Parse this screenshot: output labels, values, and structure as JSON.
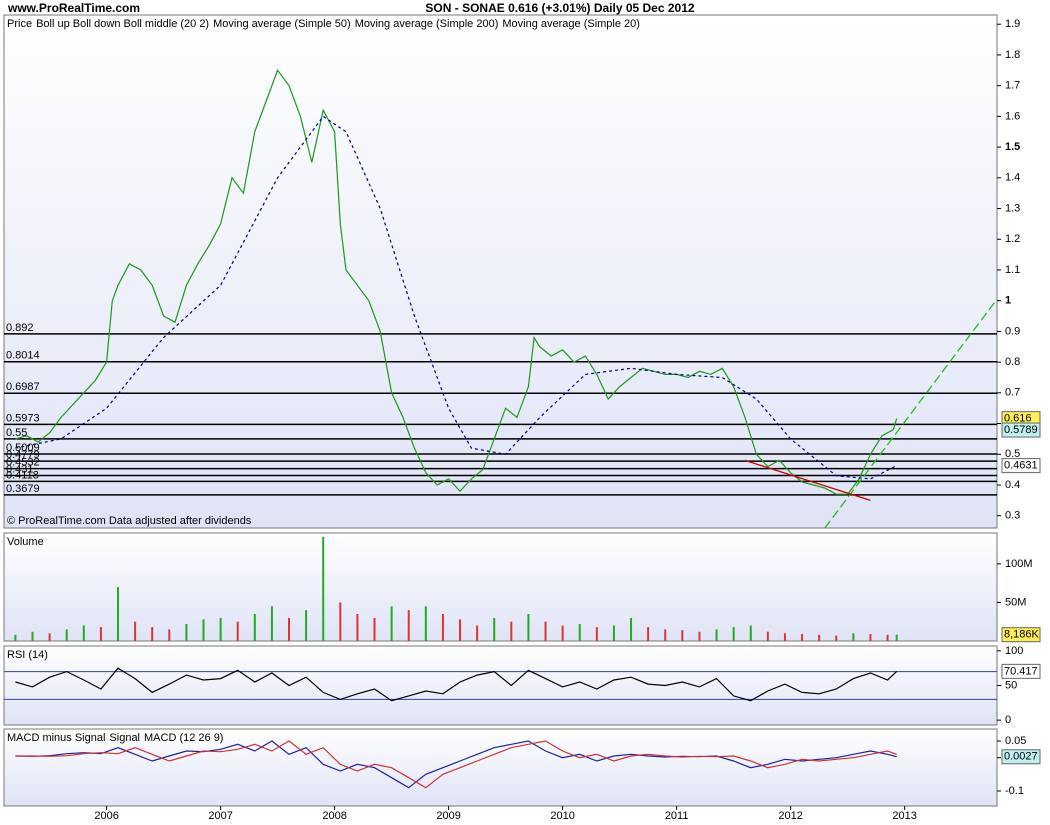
{
  "site": "www.ProRealTime.com",
  "header": "SON - SONAE   0.616 (+3.01%)    Daily  05 Dec 2012",
  "chart_data": [
    {
      "type": "line",
      "panel": "price",
      "legend": [
        {
          "name": "Price",
          "color": "#000000"
        },
        {
          "name": "Boll up Boll down Boll middle (20 2)",
          "color": "#b070c8"
        },
        {
          "name": "Moving average (Simple 50)",
          "color": "#cc0000"
        },
        {
          "name": "Moving average (Simple 200)",
          "color": "#000080"
        },
        {
          "name": "Moving average (Simple 20)",
          "color": "#22d8d8"
        }
      ],
      "footnote": "© ProRealTime.com  Data adjusted after dividends",
      "xlim": [
        2005.1,
        2013.81
      ],
      "ylim": [
        0.26,
        1.93
      ],
      "yticks": [
        0.3,
        0.4,
        0.5,
        0.6,
        0.7,
        0.8,
        0.9,
        1,
        1.1,
        1.2,
        1.3,
        1.4,
        1.5,
        1.6,
        1.7,
        1.8,
        1.9
      ],
      "levels": [
        0.892,
        0.8014,
        0.6987,
        0.5973,
        0.55,
        0.5009,
        0.4779,
        0.4532,
        0.431,
        0.4118,
        0.3679
      ],
      "series": [
        {
          "color": "#1a9a1a",
          "style": "solid",
          "x": [
            2005.2,
            2005.3,
            2005.4,
            2005.5,
            2005.6,
            2005.7,
            2005.8,
            2005.9,
            2006.0,
            2006.05,
            2006.1,
            2006.2,
            2006.3,
            2006.4,
            2006.5,
            2006.6,
            2006.7,
            2006.8,
            2006.9,
            2007.0,
            2007.1,
            2007.2,
            2007.3,
            2007.4,
            2007.5,
            2007.6,
            2007.7,
            2007.8,
            2007.9,
            2008.0,
            2008.05,
            2008.1,
            2008.2,
            2008.3,
            2008.4,
            2008.5,
            2008.6,
            2008.7,
            2008.8,
            2008.9,
            2009.0,
            2009.1,
            2009.2,
            2009.3,
            2009.4,
            2009.5,
            2009.6,
            2009.7,
            2009.75,
            2009.8,
            2009.9,
            2010.0,
            2010.1,
            2010.2,
            2010.3,
            2010.4,
            2010.5,
            2010.6,
            2010.7,
            2010.8,
            2010.9,
            2011.0,
            2011.1,
            2011.2,
            2011.3,
            2011.4,
            2011.5,
            2011.6,
            2011.7,
            2011.8,
            2011.9,
            2012.0,
            2012.1,
            2012.2,
            2012.3,
            2012.4,
            2012.5,
            2012.6,
            2012.7,
            2012.8,
            2012.9,
            2012.93
          ],
          "values": [
            0.55,
            0.56,
            0.54,
            0.57,
            0.62,
            0.66,
            0.7,
            0.74,
            0.8,
            1.0,
            1.05,
            1.12,
            1.1,
            1.05,
            0.95,
            0.93,
            1.05,
            1.12,
            1.18,
            1.25,
            1.4,
            1.35,
            1.55,
            1.65,
            1.75,
            1.7,
            1.6,
            1.45,
            1.62,
            1.55,
            1.25,
            1.1,
            1.05,
            1.0,
            0.9,
            0.7,
            0.62,
            0.52,
            0.44,
            0.4,
            0.42,
            0.38,
            0.42,
            0.45,
            0.55,
            0.65,
            0.62,
            0.72,
            0.88,
            0.85,
            0.82,
            0.84,
            0.8,
            0.82,
            0.76,
            0.68,
            0.72,
            0.75,
            0.78,
            0.77,
            0.76,
            0.76,
            0.75,
            0.77,
            0.76,
            0.78,
            0.72,
            0.62,
            0.5,
            0.46,
            0.48,
            0.44,
            0.41,
            0.4,
            0.39,
            0.37,
            0.37,
            0.42,
            0.5,
            0.56,
            0.58,
            0.616
          ]
        },
        {
          "color": "#000080",
          "style": "dashed",
          "x": [
            2005.2,
            2005.6,
            2006.0,
            2006.5,
            2007.0,
            2007.5,
            2007.9,
            2008.1,
            2008.4,
            2008.7,
            2009.0,
            2009.2,
            2009.5,
            2009.8,
            2010.2,
            2010.6,
            2011.0,
            2011.4,
            2011.7,
            2012.0,
            2012.4,
            2012.7,
            2012.93
          ],
          "values": [
            0.52,
            0.55,
            0.65,
            0.88,
            1.05,
            1.4,
            1.6,
            1.55,
            1.3,
            0.95,
            0.65,
            0.52,
            0.5,
            0.62,
            0.76,
            0.78,
            0.76,
            0.75,
            0.68,
            0.55,
            0.43,
            0.42,
            0.4631
          ]
        }
      ],
      "trendlines": [
        {
          "color": "#22bb22",
          "x": [
            2012.3,
            2013.8
          ],
          "values": [
            0.26,
            1.0
          ]
        },
        {
          "color": "#cc0000",
          "x": [
            2011.6,
            2012.7
          ],
          "values": [
            0.48,
            0.35
          ]
        }
      ],
      "last_labels": [
        {
          "value": 0.616,
          "color": "#ffee55"
        },
        {
          "value": 0.5789,
          "color": "#bff0f0"
        },
        {
          "value": 0.4631,
          "color": "#ffffff"
        }
      ]
    },
    {
      "type": "bar",
      "panel": "volume",
      "title": "Volume",
      "color": "#22aa22",
      "xlim": [
        2005.1,
        2013.81
      ],
      "ylim": [
        0,
        140000000
      ],
      "yticks": [
        {
          "value": 50000000,
          "label": "50M"
        },
        {
          "value": 100000000,
          "label": "100M"
        }
      ],
      "x": [
        2005.2,
        2005.35,
        2005.5,
        2005.65,
        2005.8,
        2005.95,
        2006.1,
        2006.25,
        2006.4,
        2006.55,
        2006.7,
        2006.85,
        2007.0,
        2007.15,
        2007.3,
        2007.45,
        2007.6,
        2007.75,
        2007.9,
        2008.05,
        2008.2,
        2008.35,
        2008.5,
        2008.65,
        2008.8,
        2008.95,
        2009.1,
        2009.25,
        2009.4,
        2009.55,
        2009.7,
        2009.85,
        2010.0,
        2010.15,
        2010.3,
        2010.45,
        2010.6,
        2010.75,
        2010.9,
        2011.05,
        2011.2,
        2011.35,
        2011.5,
        2011.65,
        2011.8,
        2011.95,
        2012.1,
        2012.25,
        2012.4,
        2012.55,
        2012.7,
        2012.85,
        2012.93
      ],
      "values": [
        8000000,
        12000000,
        10000000,
        15000000,
        20000000,
        18000000,
        70000000,
        25000000,
        18000000,
        15000000,
        22000000,
        28000000,
        30000000,
        25000000,
        35000000,
        45000000,
        30000000,
        40000000,
        135000000,
        50000000,
        35000000,
        30000000,
        45000000,
        40000000,
        45000000,
        35000000,
        28000000,
        20000000,
        30000000,
        25000000,
        35000000,
        25000000,
        20000000,
        22000000,
        18000000,
        20000000,
        30000000,
        18000000,
        15000000,
        14000000,
        12000000,
        15000000,
        18000000,
        20000000,
        12000000,
        10000000,
        9000000,
        8000000,
        7000000,
        10000000,
        9000000,
        8000000,
        8186000
      ],
      "last_labels": [
        {
          "value": 8186000,
          "label": "8,186K",
          "color": "#ffee55"
        }
      ]
    },
    {
      "type": "line",
      "panel": "rsi",
      "title": "RSI (14)",
      "xlim": [
        2005.1,
        2013.81
      ],
      "ylim": [
        -7,
        107
      ],
      "yticks": [
        0,
        50,
        100
      ],
      "hlines": [
        30,
        70
      ],
      "series": [
        {
          "color": "#000000",
          "style": "solid",
          "x": [
            2005.2,
            2005.35,
            2005.5,
            2005.65,
            2005.8,
            2005.95,
            2006.1,
            2006.25,
            2006.4,
            2006.55,
            2006.7,
            2006.85,
            2007.0,
            2007.15,
            2007.3,
            2007.45,
            2007.6,
            2007.75,
            2007.9,
            2008.05,
            2008.2,
            2008.35,
            2008.5,
            2008.65,
            2008.8,
            2008.95,
            2009.1,
            2009.25,
            2009.4,
            2009.55,
            2009.7,
            2009.85,
            2010.0,
            2010.15,
            2010.3,
            2010.45,
            2010.6,
            2010.75,
            2010.9,
            2011.05,
            2011.2,
            2011.35,
            2011.5,
            2011.65,
            2011.8,
            2011.95,
            2012.1,
            2012.25,
            2012.4,
            2012.55,
            2012.7,
            2012.85,
            2012.93
          ],
          "values": [
            55,
            48,
            62,
            70,
            58,
            45,
            75,
            60,
            40,
            52,
            65,
            58,
            60,
            72,
            55,
            68,
            50,
            62,
            40,
            30,
            38,
            45,
            28,
            35,
            42,
            38,
            55,
            65,
            70,
            50,
            72,
            60,
            48,
            55,
            45,
            58,
            62,
            52,
            50,
            55,
            48,
            60,
            35,
            28,
            42,
            52,
            40,
            38,
            45,
            60,
            68,
            58,
            70.417
          ]
        }
      ],
      "last_labels": [
        {
          "value": 70.417,
          "color": "#ffffff"
        }
      ]
    },
    {
      "type": "line",
      "panel": "macd",
      "legend": [
        {
          "name": "MACD minus Signal",
          "color": "#22aa22"
        },
        {
          "name": "Signal",
          "color": "#cc3333"
        },
        {
          "name": "MACD (12 26 9)",
          "color": "#2020a0"
        }
      ],
      "xlim": [
        2005.1,
        2013.81
      ],
      "ylim": [
        -0.145,
        0.086
      ],
      "yticks": [
        0.05,
        0,
        -0.1
      ],
      "xticks": [
        2006,
        2007,
        2008,
        2009,
        2010,
        2011,
        2012,
        2013
      ],
      "series": [
        {
          "color": "#2020a0",
          "style": "solid",
          "x": [
            2005.2,
            2005.35,
            2005.5,
            2005.65,
            2005.8,
            2005.95,
            2006.1,
            2006.25,
            2006.4,
            2006.55,
            2006.7,
            2006.85,
            2007.0,
            2007.15,
            2007.3,
            2007.45,
            2007.6,
            2007.75,
            2007.9,
            2008.05,
            2008.2,
            2008.35,
            2008.5,
            2008.65,
            2008.8,
            2008.95,
            2009.1,
            2009.25,
            2009.4,
            2009.55,
            2009.7,
            2009.85,
            2010.0,
            2010.15,
            2010.3,
            2010.45,
            2010.6,
            2010.75,
            2010.9,
            2011.05,
            2011.2,
            2011.35,
            2011.5,
            2011.65,
            2011.8,
            2011.95,
            2012.1,
            2012.25,
            2012.4,
            2012.55,
            2012.7,
            2012.85,
            2012.93
          ],
          "values": [
            0.005,
            0.004,
            0.006,
            0.012,
            0.015,
            0.012,
            0.03,
            0.01,
            -0.01,
            0.005,
            0.02,
            0.018,
            0.025,
            0.04,
            0.02,
            0.05,
            0.01,
            0.03,
            -0.02,
            -0.04,
            -0.02,
            -0.03,
            -0.06,
            -0.09,
            -0.05,
            -0.03,
            -0.01,
            0.01,
            0.03,
            0.04,
            0.05,
            0.02,
            0.0,
            0.01,
            -0.01,
            0.005,
            0.01,
            0.005,
            0.002,
            0.004,
            0.003,
            0.005,
            -0.01,
            -0.03,
            -0.02,
            -0.005,
            -0.01,
            -0.005,
            0.0,
            0.01,
            0.02,
            0.01,
            0.0027
          ]
        },
        {
          "color": "#cc3333",
          "style": "solid",
          "x": [
            2005.2,
            2005.35,
            2005.5,
            2005.65,
            2005.8,
            2005.95,
            2006.1,
            2006.25,
            2006.4,
            2006.55,
            2006.7,
            2006.85,
            2007.0,
            2007.15,
            2007.3,
            2007.45,
            2007.6,
            2007.75,
            2007.9,
            2008.05,
            2008.2,
            2008.35,
            2008.5,
            2008.65,
            2008.8,
            2008.95,
            2009.1,
            2009.25,
            2009.4,
            2009.55,
            2009.7,
            2009.85,
            2010.0,
            2010.15,
            2010.3,
            2010.45,
            2010.6,
            2010.75,
            2010.9,
            2011.05,
            2011.2,
            2011.35,
            2011.5,
            2011.65,
            2011.8,
            2011.95,
            2012.1,
            2012.25,
            2012.4,
            2012.55,
            2012.7,
            2012.85,
            2012.93
          ],
          "values": [
            0.005,
            0.005,
            0.004,
            0.006,
            0.012,
            0.015,
            0.012,
            0.03,
            0.01,
            -0.01,
            0.005,
            0.02,
            0.018,
            0.025,
            0.04,
            0.02,
            0.05,
            0.01,
            0.03,
            -0.02,
            -0.04,
            -0.02,
            -0.03,
            -0.06,
            -0.09,
            -0.05,
            -0.03,
            -0.01,
            0.01,
            0.03,
            0.04,
            0.05,
            0.02,
            0.0,
            0.01,
            -0.01,
            0.005,
            0.01,
            0.005,
            0.002,
            0.004,
            0.003,
            0.005,
            -0.01,
            -0.03,
            -0.02,
            -0.005,
            -0.01,
            -0.005,
            0.0,
            0.01,
            0.02,
            0.01
          ]
        }
      ],
      "last_labels": [
        {
          "value": 0.0027,
          "color": "#bff0f0"
        }
      ]
    }
  ]
}
